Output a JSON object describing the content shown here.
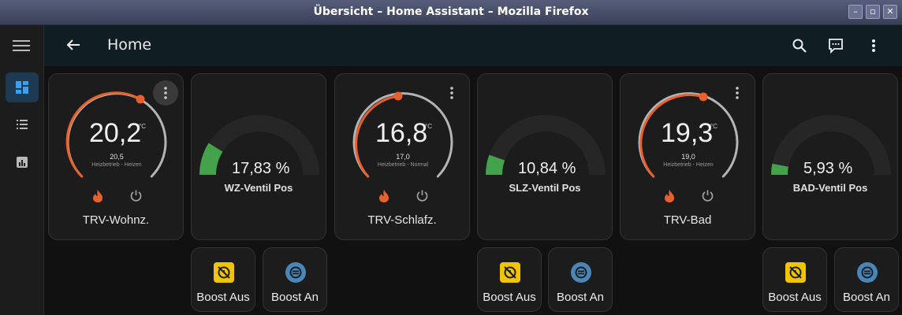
{
  "window": {
    "title": "Übersicht – Home Assistant – Mozilla Firefox"
  },
  "header": {
    "title": "Home"
  },
  "colors": {
    "heat": "#e8602c",
    "valve": "#44a34a",
    "boost_off_bg": "#f0c400",
    "boost_on_bg": "#4a86b8",
    "active_nav": "#1e3a52"
  },
  "thermostats": [
    {
      "current": "20,2",
      "unit": "°C",
      "target": "20,5",
      "mode": "Heizbetrieb - Heizen",
      "name": "TRV-Wohnz."
    },
    {
      "current": "16,8",
      "unit": "°C",
      "target": "17,0",
      "mode": "Heizbetrieb - Normal",
      "name": "TRV-Schlafz."
    },
    {
      "current": "19,3",
      "unit": "°C",
      "target": "19,0",
      "mode": "Heizbetrieb - Heizen",
      "name": "TRV-Bad"
    }
  ],
  "gauges": [
    {
      "value": "17,83 %",
      "percent": 17.83,
      "name": "WZ-Ventil Pos"
    },
    {
      "value": "10,84 %",
      "percent": 10.84,
      "name": "SLZ-Ventil Pos"
    },
    {
      "value": "5,93 %",
      "percent": 5.93,
      "name": "BAD-Ventil Pos"
    }
  ],
  "buttons": {
    "boost_off": "Boost Aus",
    "boost_on": "Boost An"
  }
}
